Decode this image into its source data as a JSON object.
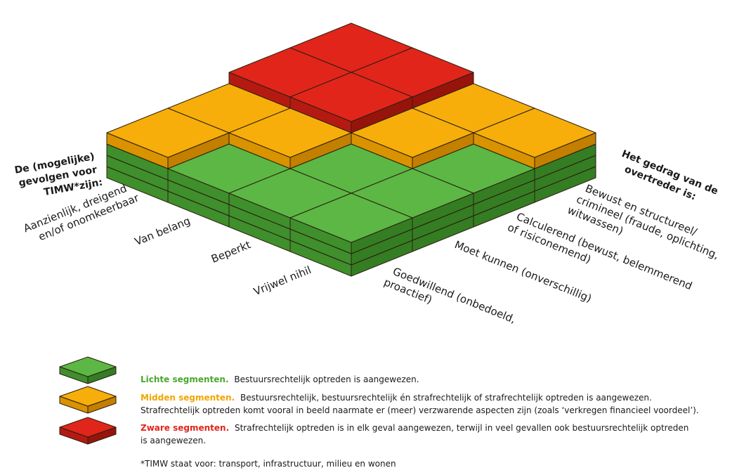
{
  "axis_left": {
    "title": [
      "De (mogelijke)",
      "gevolgen voor",
      "TIMW*zijn:"
    ],
    "levels": [
      [
        "Vrijwel nihil"
      ],
      [
        "Beperkt"
      ],
      [
        "Van belang"
      ],
      [
        "Aanzienlijk, dreigend",
        "en/of onomkeerbaar"
      ]
    ]
  },
  "axis_right": {
    "title": [
      "Het gedrag van de",
      "overtreder is:"
    ],
    "levels": [
      [
        "Goedwillend (onbedoeld,",
        "proactief)"
      ],
      [
        "Moet kunnen (onverschillig)"
      ],
      [
        "Calculerend (bewust, belemmerend",
        "of risiconemend)"
      ],
      [
        "Bewust en structureel/",
        "crimineel (fraude, oplichting,",
        "witwassen)"
      ]
    ]
  },
  "legend": [
    {
      "label": "Lichte segmenten.",
      "text": [
        "Bestuursrechtelijk optreden is aangewezen."
      ]
    },
    {
      "label": "Midden segmenten.",
      "text": [
        "Bestuursrechtelijk, bestuursrechtelijk én strafrechtelijk of strafrechtelijk optreden is aangewezen.",
        "Strafrechtelijk optreden komt vooral in beeld naarmate er (meer) verzwarende aspecten zijn (zoals ‘verkregen financieel voordeel’)."
      ]
    },
    {
      "label": "Zware segmenten.",
      "text": [
        "Strafrechtelijk optreden is in elk geval aangewezen, terwijl in veel gevallen ook bestuursrechtelijk optreden",
        "is aangewezen."
      ]
    }
  ],
  "footnote": "*TIMW staat voor: transport, infrastructuur, milieu en wonen"
}
